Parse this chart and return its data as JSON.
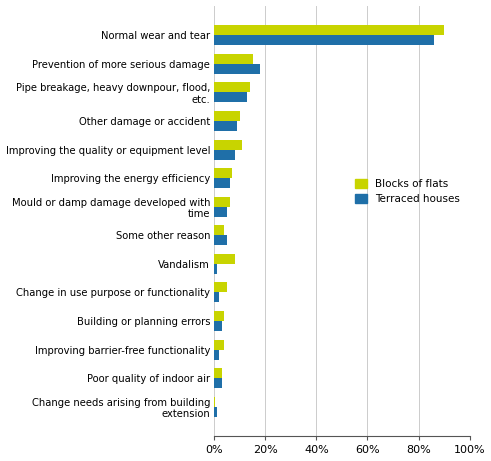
{
  "categories": [
    "Normal wear and tear",
    "Prevention of more serious damage",
    "Pipe breakage, heavy downpour, flood,\netc.",
    "Other damage or accident",
    "Improving the quality or equipment level",
    "Improving the energy efficiency",
    "Mould or damp damage developed with\ntime",
    "Some other reason",
    "Vandalism",
    "Change in use purpose or functionality",
    "Building or planning errors",
    "Improving barrier-free functionality",
    "Poor quality of indoor air",
    "Change needs arising from building\nextension"
  ],
  "blocks_of_flats": [
    90,
    15,
    14,
    10,
    11,
    7,
    6,
    4,
    8,
    5,
    4,
    4,
    3,
    0.5
  ],
  "terraced_houses": [
    86,
    18,
    13,
    9,
    8,
    6,
    5,
    5,
    1,
    2,
    3,
    2,
    3,
    1
  ],
  "color_blocks": "#c8d400",
  "color_terraced": "#1f6fa8",
  "xlim": [
    0,
    100
  ],
  "xticks": [
    0,
    20,
    40,
    60,
    80,
    100
  ],
  "xticklabels": [
    "0%",
    "20%",
    "40%",
    "60%",
    "80%",
    "100%"
  ],
  "legend_blocks": "Blocks of flats",
  "legend_terraced": "Terraced houses",
  "bar_height": 0.35
}
